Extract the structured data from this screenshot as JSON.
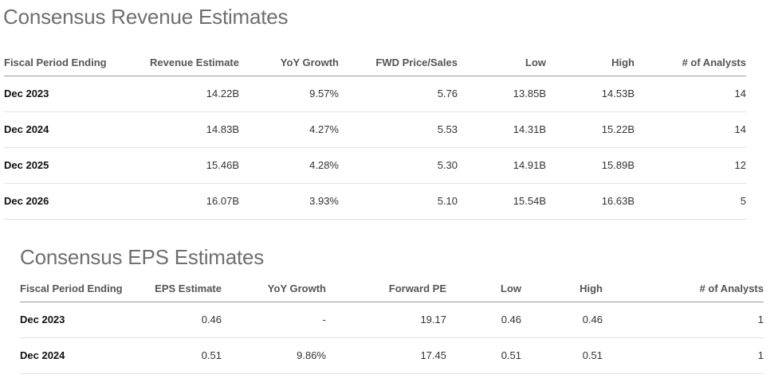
{
  "revenue": {
    "title": "Consensus Revenue Estimates",
    "headers": [
      "Fiscal Period Ending",
      "Revenue Estimate",
      "YoY Growth",
      "FWD Price/Sales",
      "Low",
      "High",
      "# of Analysts"
    ],
    "rows": [
      [
        "Dec 2023",
        "14.22B",
        "9.57%",
        "5.76",
        "13.85B",
        "14.53B",
        "14"
      ],
      [
        "Dec 2024",
        "14.83B",
        "4.27%",
        "5.53",
        "14.31B",
        "15.22B",
        "14"
      ],
      [
        "Dec 2025",
        "15.46B",
        "4.28%",
        "5.30",
        "14.91B",
        "15.89B",
        "12"
      ],
      [
        "Dec 2026",
        "16.07B",
        "3.93%",
        "5.10",
        "15.54B",
        "16.63B",
        "5"
      ]
    ]
  },
  "eps": {
    "title": "Consensus EPS Estimates",
    "headers": [
      "Fiscal Period Ending",
      "EPS Estimate",
      "YoY Growth",
      "Forward PE",
      "Low",
      "High",
      "# of Analysts"
    ],
    "rows": [
      [
        "Dec 2023",
        "0.46",
        "-",
        "19.17",
        "0.46",
        "0.46",
        "1"
      ],
      [
        "Dec 2024",
        "0.51",
        "9.86%",
        "17.45",
        "0.51",
        "0.51",
        "1"
      ]
    ]
  }
}
